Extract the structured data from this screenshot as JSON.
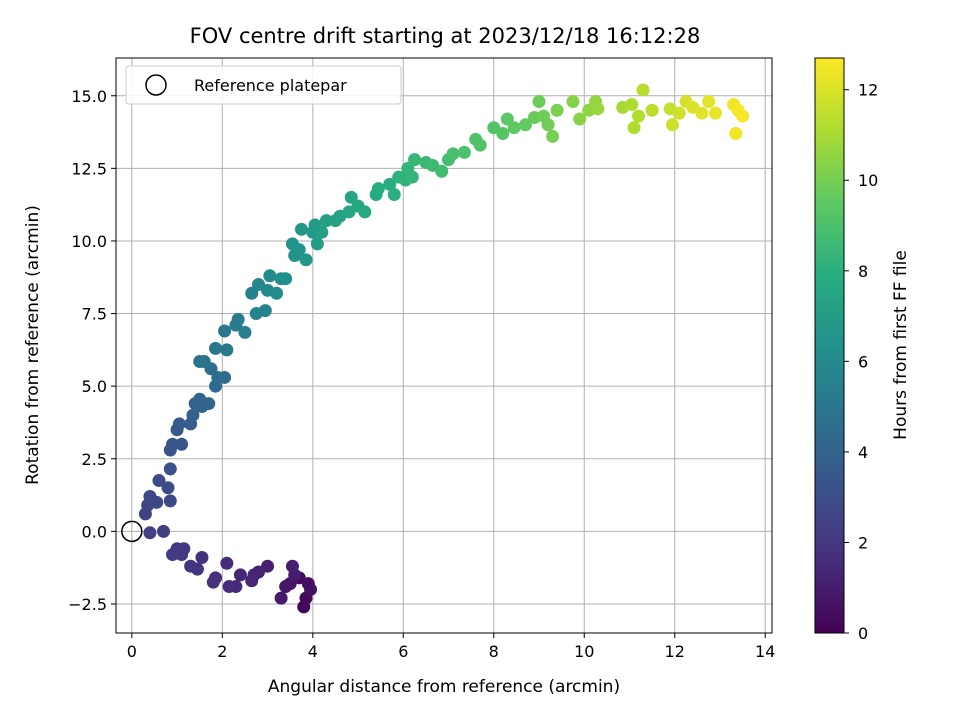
{
  "chart_data": {
    "type": "scatter",
    "title": "FOV centre drift starting at 2023/12/18 16:12:28",
    "xlabel": "Angular distance from reference (arcmin)",
    "ylabel": "Rotation from reference (arcmin)",
    "xlim": [
      -0.35,
      14.15
    ],
    "ylim": [
      -3.5,
      16.3
    ],
    "xticks": [
      0,
      2,
      4,
      6,
      8,
      10,
      12,
      14
    ],
    "xtick_labels": [
      "0",
      "2",
      "4",
      "6",
      "8",
      "10",
      "12",
      "14"
    ],
    "yticks": [
      -2.5,
      0.0,
      2.5,
      5.0,
      7.5,
      10.0,
      12.5,
      15.0
    ],
    "ytick_labels": [
      "−2.5",
      "0.0",
      "2.5",
      "5.0",
      "7.5",
      "10.0",
      "12.5",
      "15.0"
    ],
    "grid": true,
    "legend": {
      "placement": "upper-left",
      "entries": [
        "Reference platepar"
      ]
    },
    "reference_point": {
      "name": "Reference platepar",
      "x": 0,
      "y": 0
    },
    "colorbar": {
      "label": "Hours from first FF file",
      "colormap": "viridis",
      "range": [
        0,
        12.7
      ],
      "ticks": [
        0,
        2,
        4,
        6,
        8,
        10,
        12
      ],
      "tick_labels": [
        "0",
        "2",
        "4",
        "6",
        "8",
        "10",
        "12"
      ]
    },
    "points": [
      {
        "x": 3.8,
        "y": -2.6,
        "c": 0.2
      },
      {
        "x": 3.85,
        "y": -2.3,
        "c": 0.3
      },
      {
        "x": 3.7,
        "y": -1.6,
        "c": 0.4
      },
      {
        "x": 3.9,
        "y": -1.8,
        "c": 0.5
      },
      {
        "x": 3.95,
        "y": -2.0,
        "c": 0.6
      },
      {
        "x": 3.5,
        "y": -1.8,
        "c": 0.7
      },
      {
        "x": 3.4,
        "y": -1.9,
        "c": 0.8
      },
      {
        "x": 3.3,
        "y": -2.3,
        "c": 0.9
      },
      {
        "x": 3.6,
        "y": -1.5,
        "c": 1.0
      },
      {
        "x": 3.55,
        "y": -1.2,
        "c": 1.1
      },
      {
        "x": 3.0,
        "y": -1.2,
        "c": 1.15
      },
      {
        "x": 2.8,
        "y": -1.4,
        "c": 1.2
      },
      {
        "x": 2.7,
        "y": -1.5,
        "c": 1.3
      },
      {
        "x": 2.65,
        "y": -1.7,
        "c": 1.35
      },
      {
        "x": 2.4,
        "y": -1.5,
        "c": 1.4
      },
      {
        "x": 2.3,
        "y": -1.9,
        "c": 1.5
      },
      {
        "x": 2.15,
        "y": -1.9,
        "c": 1.55
      },
      {
        "x": 2.1,
        "y": -1.1,
        "c": 1.6
      },
      {
        "x": 1.85,
        "y": -1.6,
        "c": 1.7
      },
      {
        "x": 1.8,
        "y": -1.75,
        "c": 1.75
      },
      {
        "x": 1.55,
        "y": -0.9,
        "c": 1.8
      },
      {
        "x": 1.45,
        "y": -1.3,
        "c": 1.9
      },
      {
        "x": 1.3,
        "y": -1.2,
        "c": 1.95
      },
      {
        "x": 1.1,
        "y": -0.8,
        "c": 2.0
      },
      {
        "x": 1.15,
        "y": -0.6,
        "c": 2.05
      },
      {
        "x": 1.0,
        "y": -0.6,
        "c": 2.1
      },
      {
        "x": 0.9,
        "y": -0.8,
        "c": 2.2
      },
      {
        "x": 0.7,
        "y": 0.0,
        "c": 2.3
      },
      {
        "x": 0.4,
        "y": -0.05,
        "c": 2.4
      },
      {
        "x": 0.3,
        "y": 0.6,
        "c": 2.5
      },
      {
        "x": 0.35,
        "y": 0.9,
        "c": 2.6
      },
      {
        "x": 0.4,
        "y": 1.2,
        "c": 2.7
      },
      {
        "x": 0.55,
        "y": 1.0,
        "c": 2.75
      },
      {
        "x": 0.85,
        "y": 1.05,
        "c": 2.85
      },
      {
        "x": 0.6,
        "y": 1.75,
        "c": 2.9
      },
      {
        "x": 0.8,
        "y": 1.5,
        "c": 3.0
      },
      {
        "x": 0.85,
        "y": 2.15,
        "c": 3.1
      },
      {
        "x": 0.85,
        "y": 2.8,
        "c": 3.2
      },
      {
        "x": 0.9,
        "y": 3.0,
        "c": 3.3
      },
      {
        "x": 1.1,
        "y": 3.0,
        "c": 3.4
      },
      {
        "x": 1.0,
        "y": 3.5,
        "c": 3.5
      },
      {
        "x": 1.05,
        "y": 3.7,
        "c": 3.6
      },
      {
        "x": 1.3,
        "y": 3.7,
        "c": 3.7
      },
      {
        "x": 1.35,
        "y": 4.0,
        "c": 3.8
      },
      {
        "x": 1.4,
        "y": 4.4,
        "c": 3.9
      },
      {
        "x": 1.55,
        "y": 4.3,
        "c": 4.0
      },
      {
        "x": 1.5,
        "y": 4.55,
        "c": 4.1
      },
      {
        "x": 1.7,
        "y": 4.4,
        "c": 4.2
      },
      {
        "x": 1.85,
        "y": 5.0,
        "c": 4.3
      },
      {
        "x": 1.9,
        "y": 5.3,
        "c": 4.4
      },
      {
        "x": 2.05,
        "y": 5.3,
        "c": 4.5
      },
      {
        "x": 1.75,
        "y": 5.6,
        "c": 4.6
      },
      {
        "x": 1.5,
        "y": 5.85,
        "c": 4.7
      },
      {
        "x": 1.6,
        "y": 5.85,
        "c": 4.8
      },
      {
        "x": 1.85,
        "y": 6.3,
        "c": 4.9
      },
      {
        "x": 2.1,
        "y": 6.25,
        "c": 5.0
      },
      {
        "x": 2.05,
        "y": 6.9,
        "c": 5.1
      },
      {
        "x": 2.3,
        "y": 7.1,
        "c": 5.2
      },
      {
        "x": 2.35,
        "y": 7.3,
        "c": 5.3
      },
      {
        "x": 2.5,
        "y": 6.85,
        "c": 5.4
      },
      {
        "x": 2.65,
        "y": 8.2,
        "c": 5.5
      },
      {
        "x": 2.75,
        "y": 7.5,
        "c": 5.6
      },
      {
        "x": 2.95,
        "y": 7.6,
        "c": 5.7
      },
      {
        "x": 2.8,
        "y": 8.5,
        "c": 5.8
      },
      {
        "x": 3.0,
        "y": 8.3,
        "c": 5.9
      },
      {
        "x": 3.05,
        "y": 8.8,
        "c": 6.0
      },
      {
        "x": 3.3,
        "y": 8.7,
        "c": 6.1
      },
      {
        "x": 3.2,
        "y": 8.2,
        "c": 6.2
      },
      {
        "x": 3.4,
        "y": 8.7,
        "c": 6.3
      },
      {
        "x": 3.55,
        "y": 9.9,
        "c": 6.4
      },
      {
        "x": 3.6,
        "y": 9.5,
        "c": 6.5
      },
      {
        "x": 3.7,
        "y": 9.7,
        "c": 6.6
      },
      {
        "x": 3.85,
        "y": 9.35,
        "c": 6.7
      },
      {
        "x": 3.75,
        "y": 10.4,
        "c": 6.75
      },
      {
        "x": 4.0,
        "y": 10.3,
        "c": 6.8
      },
      {
        "x": 4.05,
        "y": 10.55,
        "c": 6.9
      },
      {
        "x": 4.1,
        "y": 9.9,
        "c": 7.0
      },
      {
        "x": 4.2,
        "y": 10.3,
        "c": 7.05
      },
      {
        "x": 4.3,
        "y": 10.7,
        "c": 7.1
      },
      {
        "x": 4.5,
        "y": 10.7,
        "c": 7.2
      },
      {
        "x": 4.6,
        "y": 10.85,
        "c": 7.3
      },
      {
        "x": 4.8,
        "y": 11.0,
        "c": 7.4
      },
      {
        "x": 4.85,
        "y": 11.5,
        "c": 7.45
      },
      {
        "x": 5.0,
        "y": 11.2,
        "c": 7.5
      },
      {
        "x": 5.15,
        "y": 11.0,
        "c": 7.6
      },
      {
        "x": 5.4,
        "y": 11.6,
        "c": 7.7
      },
      {
        "x": 5.45,
        "y": 11.8,
        "c": 7.8
      },
      {
        "x": 5.7,
        "y": 11.95,
        "c": 7.9
      },
      {
        "x": 5.8,
        "y": 11.6,
        "c": 8.0
      },
      {
        "x": 5.9,
        "y": 12.2,
        "c": 8.1
      },
      {
        "x": 6.05,
        "y": 12.1,
        "c": 8.2
      },
      {
        "x": 6.1,
        "y": 12.5,
        "c": 8.3
      },
      {
        "x": 6.2,
        "y": 12.2,
        "c": 8.35
      },
      {
        "x": 6.25,
        "y": 12.8,
        "c": 8.4
      },
      {
        "x": 6.5,
        "y": 12.7,
        "c": 8.5
      },
      {
        "x": 6.65,
        "y": 12.6,
        "c": 8.6
      },
      {
        "x": 6.85,
        "y": 12.4,
        "c": 8.7
      },
      {
        "x": 7.0,
        "y": 12.8,
        "c": 8.8
      },
      {
        "x": 7.1,
        "y": 13.0,
        "c": 8.9
      },
      {
        "x": 7.35,
        "y": 13.05,
        "c": 9.0
      },
      {
        "x": 7.6,
        "y": 13.5,
        "c": 9.1
      },
      {
        "x": 7.7,
        "y": 13.3,
        "c": 9.15
      },
      {
        "x": 8.0,
        "y": 13.9,
        "c": 9.2
      },
      {
        "x": 8.2,
        "y": 13.7,
        "c": 9.3
      },
      {
        "x": 8.3,
        "y": 14.2,
        "c": 9.4
      },
      {
        "x": 8.45,
        "y": 13.9,
        "c": 9.5
      },
      {
        "x": 8.7,
        "y": 14.0,
        "c": 9.6
      },
      {
        "x": 8.9,
        "y": 14.25,
        "c": 9.7
      },
      {
        "x": 9.0,
        "y": 14.8,
        "c": 9.8
      },
      {
        "x": 9.1,
        "y": 14.3,
        "c": 9.85
      },
      {
        "x": 9.2,
        "y": 14.0,
        "c": 9.9
      },
      {
        "x": 9.3,
        "y": 13.6,
        "c": 10.0
      },
      {
        "x": 9.4,
        "y": 14.5,
        "c": 10.1
      },
      {
        "x": 9.75,
        "y": 14.8,
        "c": 10.3
      },
      {
        "x": 9.9,
        "y": 14.2,
        "c": 10.4
      },
      {
        "x": 10.1,
        "y": 14.5,
        "c": 10.5
      },
      {
        "x": 10.25,
        "y": 14.8,
        "c": 10.6
      },
      {
        "x": 10.3,
        "y": 14.55,
        "c": 10.7
      },
      {
        "x": 10.85,
        "y": 14.6,
        "c": 11.0
      },
      {
        "x": 11.05,
        "y": 14.7,
        "c": 11.1
      },
      {
        "x": 11.1,
        "y": 13.9,
        "c": 11.15
      },
      {
        "x": 11.2,
        "y": 14.3,
        "c": 11.2
      },
      {
        "x": 11.3,
        "y": 15.2,
        "c": 11.3
      },
      {
        "x": 11.5,
        "y": 14.5,
        "c": 11.4
      },
      {
        "x": 11.9,
        "y": 14.55,
        "c": 11.6
      },
      {
        "x": 11.95,
        "y": 14.0,
        "c": 11.7
      },
      {
        "x": 12.1,
        "y": 14.4,
        "c": 11.8
      },
      {
        "x": 12.25,
        "y": 14.8,
        "c": 11.9
      },
      {
        "x": 12.4,
        "y": 14.6,
        "c": 12.0
      },
      {
        "x": 12.6,
        "y": 14.4,
        "c": 12.1
      },
      {
        "x": 12.75,
        "y": 14.8,
        "c": 12.2
      },
      {
        "x": 12.9,
        "y": 14.4,
        "c": 12.3
      },
      {
        "x": 13.3,
        "y": 14.7,
        "c": 12.45
      },
      {
        "x": 13.35,
        "y": 13.7,
        "c": 12.5
      },
      {
        "x": 13.4,
        "y": 14.5,
        "c": 12.55
      },
      {
        "x": 13.5,
        "y": 14.3,
        "c": 12.6
      }
    ]
  }
}
